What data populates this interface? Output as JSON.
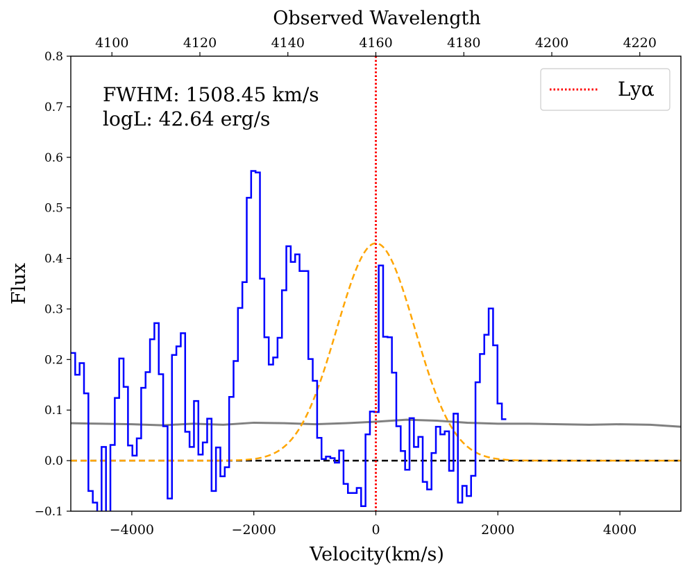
{
  "chart_data": {
    "type": "line",
    "title": "",
    "xlabel": "Velocity(km/s)",
    "ylabel": "Flux",
    "top_xlabel": "Observed Wavelength",
    "xlim": [
      -5000,
      5000
    ],
    "ylim": [
      -0.1,
      0.8
    ],
    "x_ticks": [
      -4000,
      -2000,
      0,
      2000,
      4000
    ],
    "x_tick_labels": [
      "−4000",
      "−2000",
      "0",
      "2000",
      "4000"
    ],
    "y_ticks": [
      -0.1,
      0.0,
      0.1,
      0.2,
      0.3,
      0.4,
      0.5,
      0.6,
      0.7,
      0.8
    ],
    "y_tick_labels": [
      "−0.1",
      "0.0",
      "0.1",
      "0.2",
      "0.3",
      "0.4",
      "0.5",
      "0.6",
      "0.7",
      "0.8"
    ],
    "top_axis": {
      "ticks": [
        4100,
        4120,
        4140,
        4160,
        4180,
        4200,
        4220
      ],
      "tick_labels": [
        "4100",
        "4120",
        "4140",
        "4160",
        "4180",
        "4200",
        "4220"
      ],
      "ref_wavelength": 4160,
      "ref_velocity": 0,
      "velocity_per_unit": 72.1
    },
    "annotations": [
      "FWHM: 1508.45 km/s",
      "logL: 42.64 erg/s"
    ],
    "legend": {
      "position": "top-right",
      "entries": [
        {
          "label": "Lyα",
          "style": "dotted",
          "color": "#ff0000"
        }
      ]
    },
    "colors": {
      "spectrum": "#0000ff",
      "fit": "#ffa500",
      "error": "#808080",
      "zero_line": "#000000",
      "lya_line": "#ff0000"
    },
    "series": [
      {
        "name": "spectrum",
        "kind": "step",
        "color": "#0000ff",
        "bin_width": 72.1,
        "x_start": -5000,
        "values": [
          0.213,
          0.17,
          0.193,
          0.133,
          -0.06,
          -0.083,
          -0.115,
          0.027,
          -0.115,
          0.031,
          0.124,
          0.202,
          0.146,
          0.03,
          0.01,
          0.044,
          0.144,
          0.175,
          0.24,
          0.272,
          0.171,
          0.068,
          -0.075,
          0.209,
          0.226,
          0.252,
          0.057,
          0.027,
          0.118,
          0.012,
          0.036,
          0.083,
          -0.06,
          0.026,
          -0.031,
          -0.013,
          0.126,
          0.197,
          0.302,
          0.353,
          0.52,
          0.573,
          0.57,
          0.36,
          0.244,
          0.19,
          0.204,
          0.243,
          0.337,
          0.424,
          0.393,
          0.408,
          0.375,
          0.375,
          0.201,
          0.158,
          0.045,
          0.003,
          0.008,
          0.005,
          -0.004,
          0.02,
          -0.046,
          -0.064,
          -0.064,
          -0.054,
          -0.09,
          0.052,
          0.097,
          0.096,
          0.386,
          0.245,
          0.244,
          0.174,
          0.068,
          0.019,
          -0.018,
          0.084,
          0.027,
          0.047,
          -0.042,
          -0.057,
          0.015,
          0.067,
          0.052,
          0.058,
          -0.02,
          0.093,
          -0.083,
          -0.05,
          -0.07,
          -0.03,
          0.155,
          0.211,
          0.249,
          0.301,
          0.228,
          0.113,
          0.082
        ]
      },
      {
        "name": "gaussian fit",
        "kind": "gaussian",
        "color": "#ffa500",
        "amplitude": 0.43,
        "center": 0,
        "fwhm": 1508.45
      },
      {
        "name": "error",
        "kind": "line",
        "color": "#808080",
        "x": [
          -5000,
          -4500,
          -4000,
          -3500,
          -3000,
          -2500,
          -2000,
          -1500,
          -1000,
          -500,
          0,
          500,
          1000,
          1500,
          2000,
          2500,
          3000,
          3500,
          4000,
          4500,
          5000
        ],
        "y": [
          0.074,
          0.073,
          0.072,
          0.07,
          0.073,
          0.071,
          0.075,
          0.074,
          0.072,
          0.074,
          0.077,
          0.081,
          0.079,
          0.075,
          0.073,
          0.073,
          0.072,
          0.071,
          0.072,
          0.071,
          0.067
        ]
      },
      {
        "name": "zero",
        "kind": "hline",
        "color": "#000000",
        "y": 0
      },
      {
        "name": "Lyα",
        "kind": "vline",
        "color": "#ff0000",
        "x": 0
      }
    ]
  }
}
